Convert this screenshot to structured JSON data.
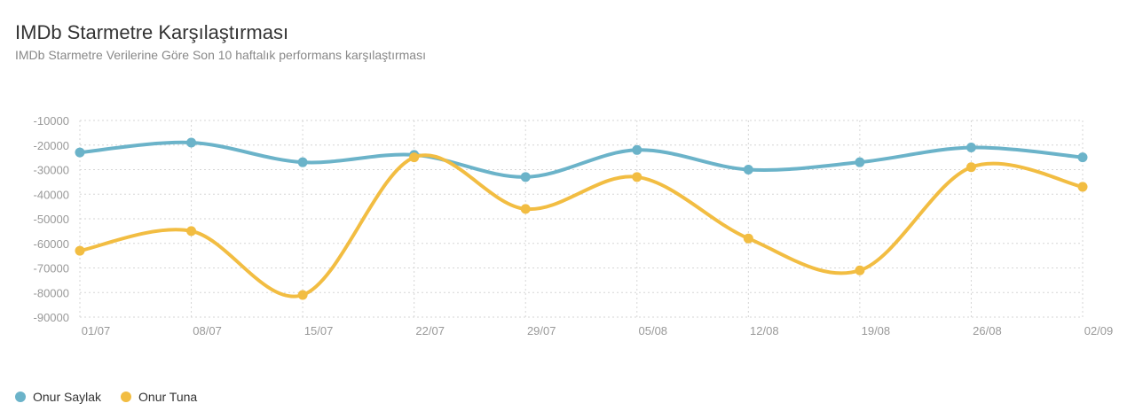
{
  "chart_data": {
    "type": "line",
    "title": "IMDb Starmetre Karşılaştırması",
    "subtitle": "IMDb Starmetre Verilerine Göre Son 10 haftalık performans karşılaştırması",
    "categories": [
      "01/07",
      "08/07",
      "15/07",
      "22/07",
      "29/07",
      "05/08",
      "12/08",
      "19/08",
      "26/08",
      "02/09"
    ],
    "y_ticks": [
      "-10000",
      "-20000",
      "-30000",
      "-40000",
      "-50000",
      "-60000",
      "-70000",
      "-80000",
      "-90000"
    ],
    "ylim": [
      -90000,
      -10000
    ],
    "grid": true,
    "legend_position": "bottom-left",
    "series": [
      {
        "name": "Onur Saylak",
        "color": "#6bb3c9",
        "values": [
          -23000,
          -19000,
          -27000,
          -24000,
          -33000,
          -22000,
          -30000,
          -27000,
          -21000,
          -25000
        ]
      },
      {
        "name": "Onur Tuna",
        "color": "#f2bd42",
        "values": [
          -63000,
          -55000,
          -81000,
          -25000,
          -46000,
          -33000,
          -58000,
          -71000,
          -29000,
          -37000
        ]
      }
    ]
  }
}
